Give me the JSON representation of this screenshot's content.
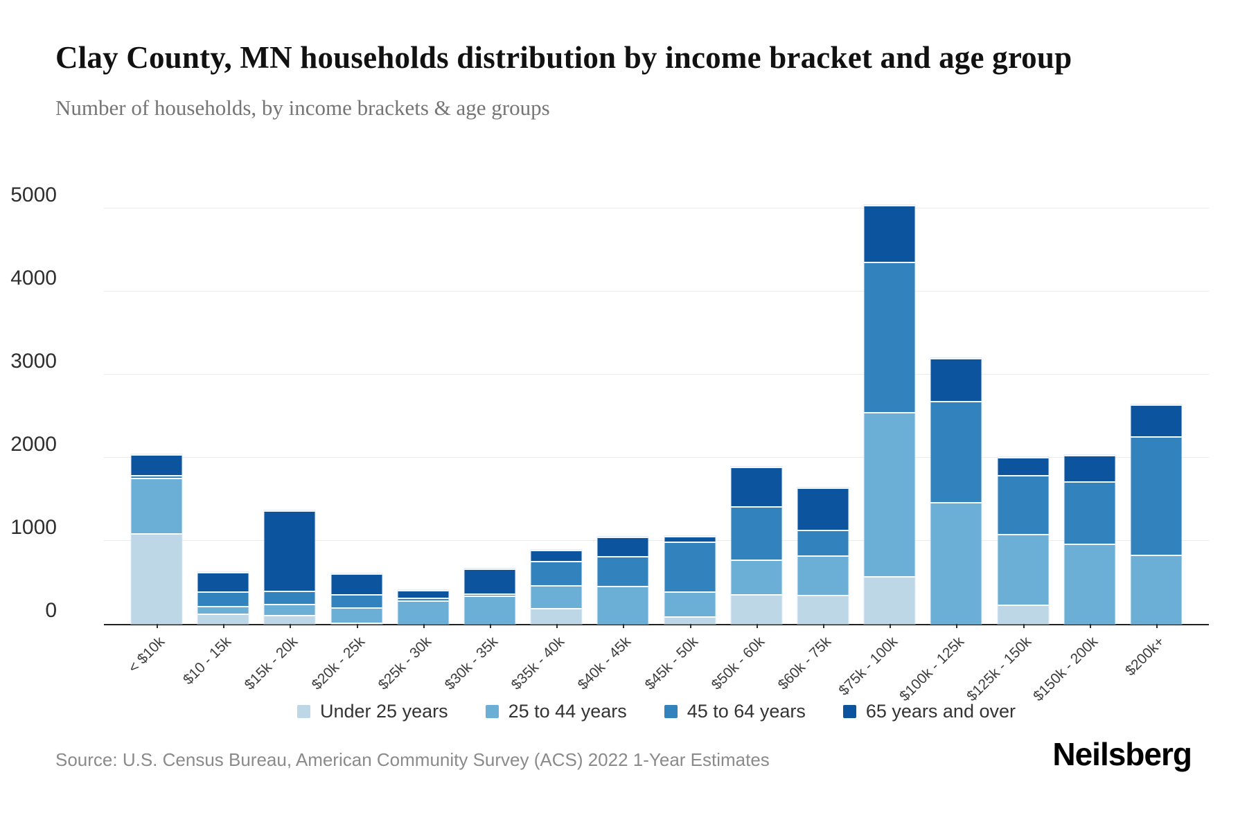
{
  "header": {
    "title": "Clay County, MN households distribution by income bracket and age group",
    "subtitle": "Number of households, by income brackets & age groups"
  },
  "footer": {
    "source": "Source: U.S. Census Bureau, American Community Survey (ACS) 2022 1-Year Estimates",
    "brand": "Neilsberg"
  },
  "colors": {
    "under_25": "#bdd7e7",
    "age_25_44": "#6baed6",
    "age_45_64": "#3182bd",
    "age_65_over": "#0d549e",
    "gridline": "#ebebeb",
    "axis": "#1f1f1f"
  },
  "chart_data": {
    "type": "bar",
    "stacked": true,
    "title": "Clay County, MN households distribution by income bracket and age group",
    "subtitle": "Number of households, by income brackets & age groups",
    "xlabel": "",
    "ylabel": "Number of households",
    "ylim": [
      0,
      5000
    ],
    "yticks": [
      0,
      1000,
      2000,
      3000,
      4000,
      5000
    ],
    "grid": true,
    "legend_position": "bottom",
    "categories": [
      "< $10k",
      "$10 - 15k",
      "$15k - 20k",
      "$20k - 25k",
      "$25k - 30k",
      "$30k - 35k",
      "$35k - 40k",
      "$40k - 45k",
      "$45k - 50k",
      "$50k - 60k",
      "$60k - 75k",
      "$75k - 100k",
      "$100k - 125k",
      "$125k - 150k",
      "$150k - 200k",
      "$200k+"
    ],
    "series": [
      {
        "name": "Under 25 years",
        "color": "#bdd7e7",
        "values": [
          1090,
          125,
          110,
          10,
          0,
          0,
          190,
          0,
          90,
          355,
          350,
          575,
          0,
          230,
          0,
          0
        ]
      },
      {
        "name": "25 to 44 years",
        "color": "#6baed6",
        "values": [
          665,
          95,
          130,
          185,
          280,
          345,
          280,
          460,
          305,
          420,
          475,
          1975,
          1465,
          855,
          970,
          835
        ]
      },
      {
        "name": "45 to 64 years",
        "color": "#3182bd",
        "values": [
          40,
          175,
          160,
          160,
          35,
          20,
          285,
          355,
          595,
          640,
          305,
          1805,
          1220,
          710,
          745,
          1425
        ]
      },
      {
        "name": "65 years and over",
        "color": "#0d549e",
        "values": [
          250,
          230,
          970,
          250,
          95,
          305,
          135,
          235,
          65,
          480,
          515,
          685,
          515,
          215,
          320,
          385
        ]
      }
    ],
    "totals": [
      2045,
      625,
      1370,
      605,
      410,
      670,
      890,
      1050,
      1055,
      1895,
      1645,
      5040,
      3200,
      2010,
      2035,
      2645
    ]
  }
}
